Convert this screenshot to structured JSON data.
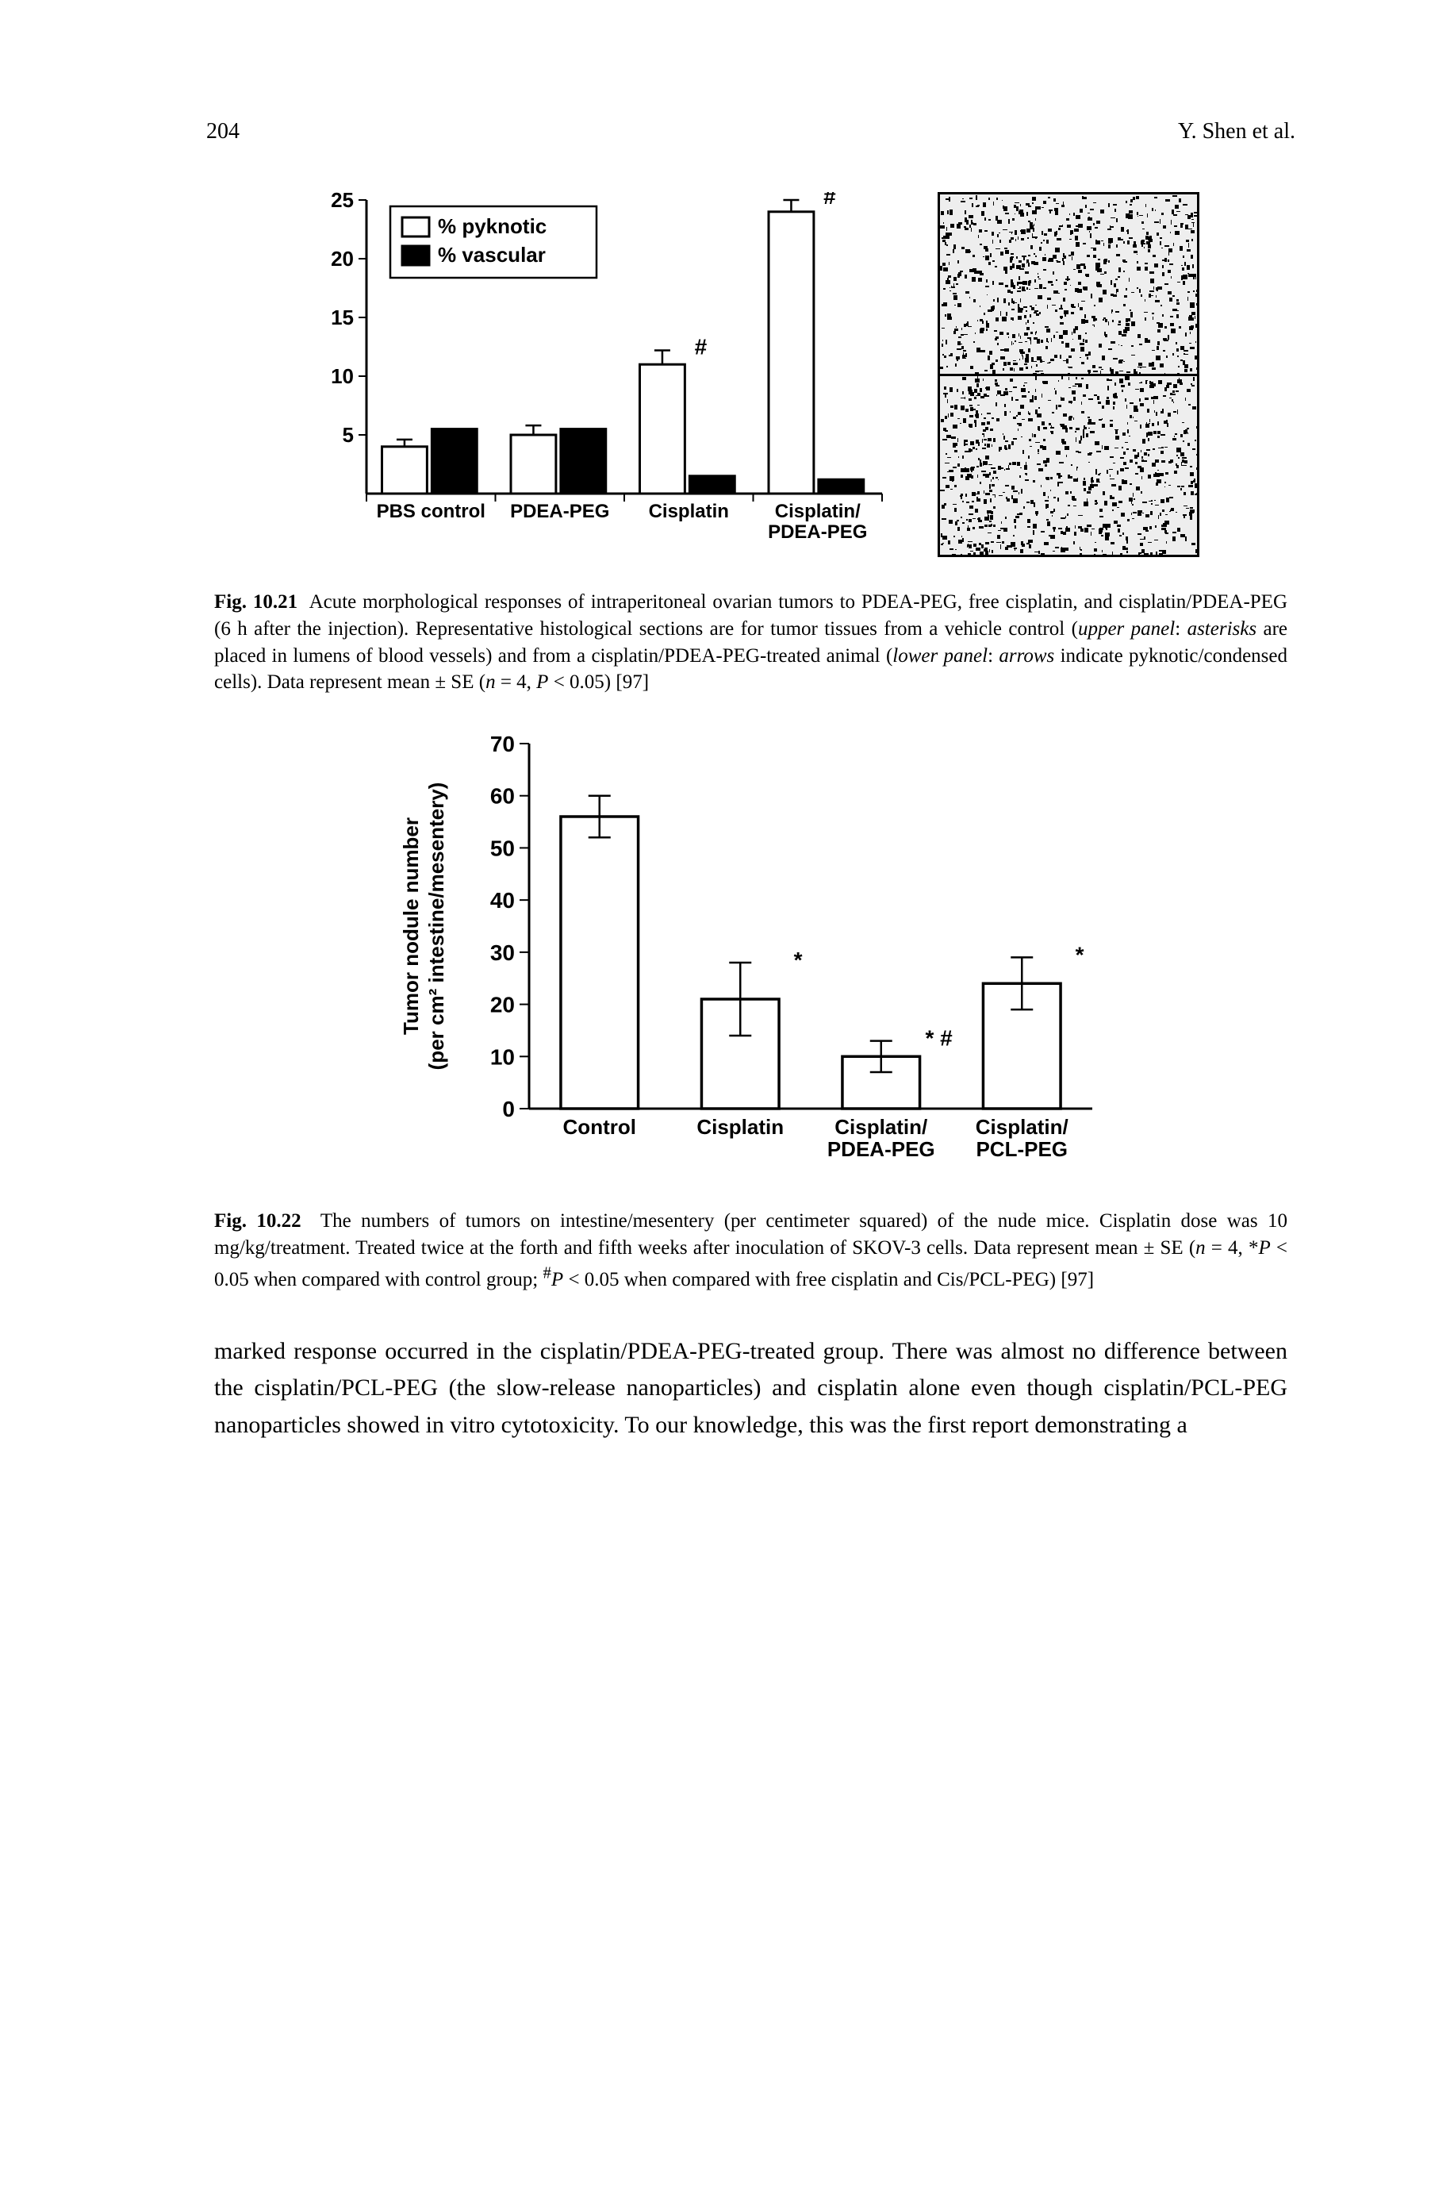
{
  "header": {
    "page_number": "204",
    "running_head": "Y. Shen et al."
  },
  "fig21": {
    "chart": {
      "type": "grouped-bar",
      "ylim": [
        0,
        25
      ],
      "ytick_step": 5,
      "categories": [
        "PBS control",
        "PDEA-PEG",
        "Cisplatin",
        "Cisplatin/\nPDEA-PEG"
      ],
      "series": [
        {
          "name": "% pyknotic",
          "color": "#ffffff",
          "values": [
            4,
            5,
            11,
            24
          ],
          "err": [
            0.6,
            0.8,
            1.2,
            1.0
          ],
          "sig": [
            "",
            "",
            "#",
            "#"
          ]
        },
        {
          "name": "% vascular",
          "color": "#000000",
          "values": [
            5.5,
            5.5,
            1.5,
            1.2
          ],
          "err": [
            0,
            0,
            0,
            0
          ]
        }
      ],
      "bar_width": 0.35,
      "stroke_width": 3,
      "background_color": "#ffffff",
      "axis_color": "#000000",
      "tick_fontsize": 26,
      "label_fontsize": 24
    },
    "caption_label": "Fig. 10.21",
    "caption_text": "Acute morphological responses of intraperitoneal ovarian tumors to PDEA-PEG, free cisplatin, and cisplatin/PDEA-PEG (6 h after the injection). Representative histological sections are for tumor tissues from a vehicle control (upper panel: asterisks are placed in lumens of blood vessels) and from a cisplatin/PDEA-PEG-treated animal (lower panel: arrows indicate pyknotic/condensed cells). Data represent mean ± SE (n = 4, P < 0.05) [97]"
  },
  "fig22": {
    "chart": {
      "type": "bar",
      "ylim": [
        0,
        70
      ],
      "ytick_step": 10,
      "ylabel_line1": "Tumor nodule number",
      "ylabel_line2": "(per cm² intestine/mesentery)",
      "categories": [
        "Control",
        "Cisplatin",
        "Cisplatin/\nPDEA-PEG",
        "Cisplatin/\nPCL-PEG"
      ],
      "values": [
        56,
        21,
        10,
        24
      ],
      "err": [
        4,
        7,
        3,
        5
      ],
      "sig": [
        "",
        "*",
        "* #",
        "*"
      ],
      "bar_color": "#ffffff",
      "bar_width": 0.55,
      "stroke_width": 3.5,
      "background_color": "#ffffff",
      "axis_color": "#000000",
      "tick_fontsize": 28,
      "label_fontsize": 26
    },
    "caption_label": "Fig. 10.22",
    "caption_text": "The numbers of tumors on intestine/mesentery (per centimeter squared) of the nude mice. Cisplatin dose was 10 mg/kg/treatment. Treated twice at the forth and fifth weeks after inoculation of SKOV-3 cells. Data represent mean ± SE (n = 4, *P < 0.05 when compared with control group; #P < 0.05 when compared with free cisplatin and Cis/PCL-PEG) [97]"
  },
  "body_paragraph": "marked response occurred in the cisplatin/PDEA-PEG-treated group. There was almost no difference between the cisplatin/PCL-PEG (the slow-release nanoparticles) and cisplatin alone even though cisplatin/PCL-PEG nanoparticles showed in vitro cytotoxicity. To our knowledge, this was the first report demonstrating a"
}
